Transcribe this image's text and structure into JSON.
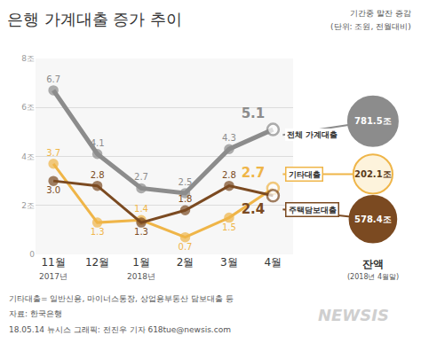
{
  "chart_data": {
    "type": "line",
    "title": "은행 가계대출 증가 추이",
    "subtitle": [
      "기간중 말잔 증감",
      "(단위: 조원, 전월대비)"
    ],
    "categories": [
      "11월",
      "12월",
      "1월",
      "2월",
      "3월",
      "4월"
    ],
    "year_labels": [
      {
        "category": "11월",
        "text": "2017년"
      },
      {
        "category": "1월",
        "text": "2018년"
      }
    ],
    "series": [
      {
        "name": "전체 가계대출",
        "color": "#8c8c8c",
        "marker": "circle",
        "line_style": "solid",
        "values": [
          6.7,
          4.1,
          2.7,
          2.5,
          4.3,
          5.1
        ],
        "value_labels": [
          "6.7",
          "4.1",
          "2.7",
          "2.5",
          "4.3",
          "5.1"
        ],
        "balance": 781.5,
        "balance_label": "781.5조"
      },
      {
        "name": "기타대출",
        "color": "#efb548",
        "marker": "circle",
        "line_style": "solid",
        "values": [
          3.7,
          1.3,
          1.4,
          0.7,
          1.5,
          2.7
        ],
        "value_labels": [
          "3.7",
          "1.3",
          "1.4",
          "0.7",
          "1.5",
          "2.7"
        ],
        "balance": 202.1,
        "balance_label": "202.1조"
      },
      {
        "name": "주택담보대출",
        "color": "#7b4a21",
        "marker": "circle",
        "line_style": "solid",
        "values": [
          3.0,
          2.8,
          1.3,
          1.8,
          2.8,
          2.4
        ],
        "value_labels": [
          "3.0",
          "2.8",
          "1.3",
          "1.8",
          "2.8",
          "2.4"
        ],
        "balance": 578.4,
        "balance_label": "578.4조"
      }
    ],
    "balance_header": "잔액",
    "balance_note": "(2018년 4월말)",
    "ylim": [
      0,
      8
    ],
    "yticks": [
      0,
      {
        "value": 2,
        "label": "2조"
      },
      {
        "value": 4,
        "label": "4조"
      },
      {
        "value": 6,
        "label": "6조"
      },
      {
        "value": 8,
        "label": "8조"
      }
    ],
    "grid": true,
    "data_labels": true,
    "notes": [
      "기타대출= 일반신용, 마이너스통장, 상업용부동산 담보대출 등",
      "자료: 한국은행",
      "18.05.14 뉴시스 그래픽: 전진우 기자 618tue@newsis.com"
    ],
    "watermark": "NEWSIS"
  }
}
